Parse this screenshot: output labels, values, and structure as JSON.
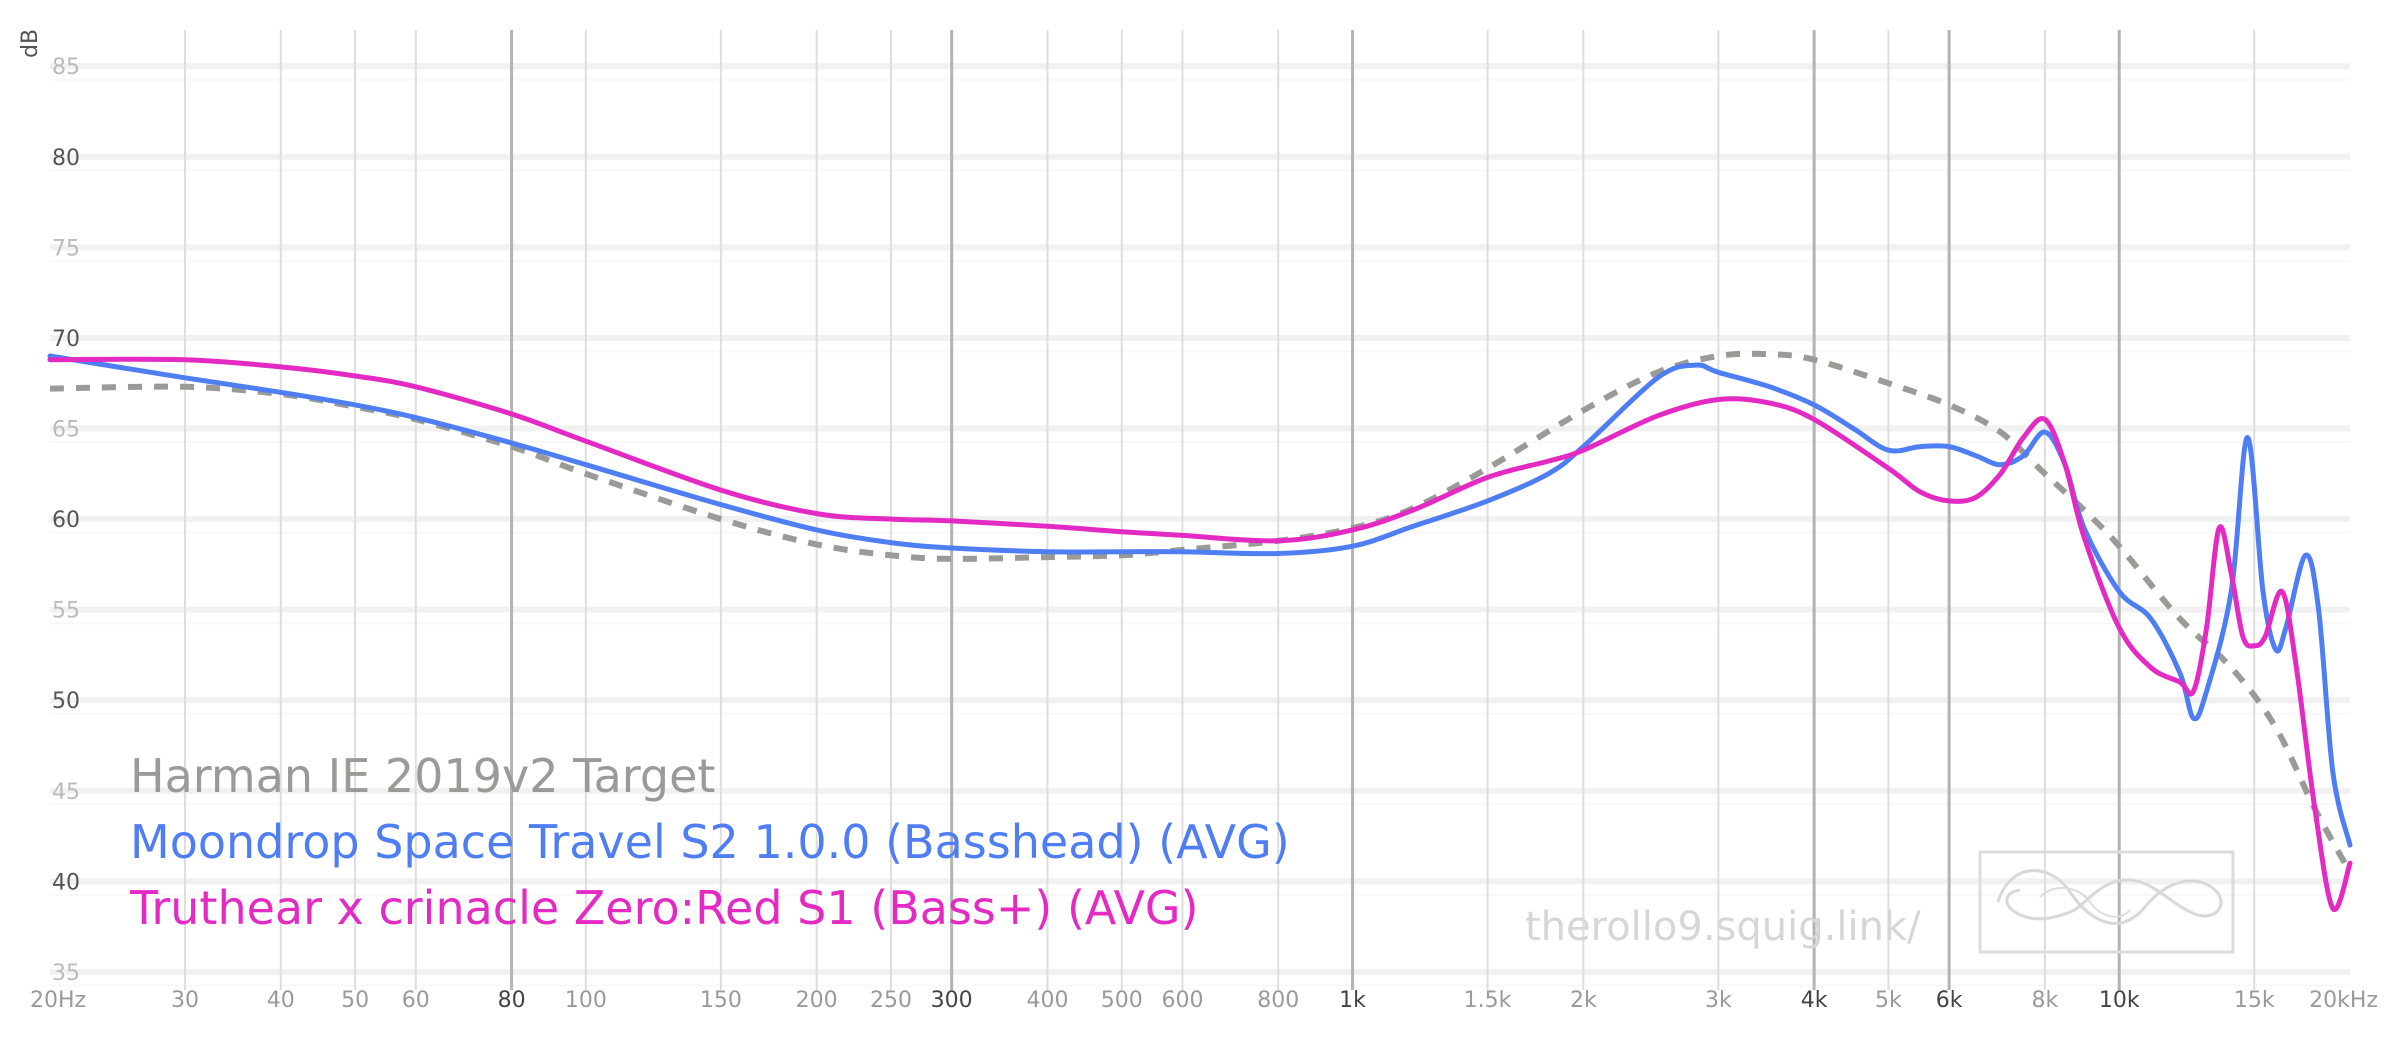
{
  "chart_data": {
    "type": "line",
    "ylabel": "dB",
    "xscale": "log",
    "xlim": [
      20,
      20000
    ],
    "ylim": [
      34,
      87
    ],
    "grid": true,
    "legend_placement": "bottom-left",
    "y_ticks": [
      {
        "value": 85,
        "label": "85"
      },
      {
        "value": 80,
        "label": "80"
      },
      {
        "value": 75,
        "label": "75"
      },
      {
        "value": 70,
        "label": "70"
      },
      {
        "value": 65,
        "label": "65"
      },
      {
        "value": 60,
        "label": "60"
      },
      {
        "value": 55,
        "label": "55"
      },
      {
        "value": 50,
        "label": "50"
      },
      {
        "value": 45,
        "label": "45"
      },
      {
        "value": 40,
        "label": "40"
      },
      {
        "value": 35,
        "label": "35"
      }
    ],
    "x_ticks": [
      {
        "value": 20,
        "label": "20Hz",
        "major": false
      },
      {
        "value": 30,
        "label": "30",
        "major": false
      },
      {
        "value": 40,
        "label": "40",
        "major": false
      },
      {
        "value": 50,
        "label": "50",
        "major": false
      },
      {
        "value": 60,
        "label": "60",
        "major": false
      },
      {
        "value": 80,
        "label": "80",
        "major": true
      },
      {
        "value": 100,
        "label": "100",
        "major": false
      },
      {
        "value": 150,
        "label": "150",
        "major": false
      },
      {
        "value": 200,
        "label": "200",
        "major": false
      },
      {
        "value": 250,
        "label": "250",
        "major": false
      },
      {
        "value": 300,
        "label": "300",
        "major": true
      },
      {
        "value": 400,
        "label": "400",
        "major": false
      },
      {
        "value": 500,
        "label": "500",
        "major": false
      },
      {
        "value": 600,
        "label": "600",
        "major": false
      },
      {
        "value": 800,
        "label": "800",
        "major": false
      },
      {
        "value": 1000,
        "label": "1k",
        "major": true
      },
      {
        "value": 1500,
        "label": "1.5k",
        "major": false
      },
      {
        "value": 2000,
        "label": "2k",
        "major": false
      },
      {
        "value": 3000,
        "label": "3k",
        "major": false
      },
      {
        "value": 4000,
        "label": "4k",
        "major": true
      },
      {
        "value": 5000,
        "label": "5k",
        "major": false
      },
      {
        "value": 6000,
        "label": "6k",
        "major": true
      },
      {
        "value": 8000,
        "label": "8k",
        "major": false
      },
      {
        "value": 10000,
        "label": "10k",
        "major": true
      },
      {
        "value": 15000,
        "label": "15k",
        "major": false
      },
      {
        "value": 20000,
        "label": "20kHz",
        "major": false
      }
    ],
    "series": [
      {
        "name": "Harman IE 2019v2 Target",
        "color": "#9a9a96",
        "dashed": true,
        "points": [
          [
            20,
            67.2
          ],
          [
            30,
            67.3
          ],
          [
            40,
            66.9
          ],
          [
            50,
            66.2
          ],
          [
            60,
            65.5
          ],
          [
            80,
            64.0
          ],
          [
            100,
            62.5
          ],
          [
            150,
            60.0
          ],
          [
            200,
            58.6
          ],
          [
            250,
            58.0
          ],
          [
            300,
            57.8
          ],
          [
            400,
            57.9
          ],
          [
            500,
            58.0
          ],
          [
            600,
            58.3
          ],
          [
            800,
            58.8
          ],
          [
            1000,
            59.5
          ],
          [
            1200,
            60.6
          ],
          [
            1500,
            62.8
          ],
          [
            2000,
            66.0
          ],
          [
            2500,
            68.1
          ],
          [
            3000,
            69.0
          ],
          [
            3500,
            69.1
          ],
          [
            4000,
            68.8
          ],
          [
            5000,
            67.5
          ],
          [
            6000,
            66.3
          ],
          [
            7000,
            64.8
          ],
          [
            8000,
            62.5
          ],
          [
            9000,
            60.5
          ],
          [
            10000,
            58.5
          ],
          [
            12000,
            54.5
          ],
          [
            14000,
            51.8
          ],
          [
            16000,
            48.5
          ],
          [
            18000,
            44.0
          ],
          [
            20000,
            40.5
          ]
        ]
      },
      {
        "name": "Moondrop Space Travel S2 1.0.0 (Basshead) (AVG)",
        "color": "#4f7ef3",
        "dashed": false,
        "points": [
          [
            20,
            69.0
          ],
          [
            30,
            67.8
          ],
          [
            40,
            67.0
          ],
          [
            50,
            66.3
          ],
          [
            60,
            65.6
          ],
          [
            80,
            64.2
          ],
          [
            100,
            63.0
          ],
          [
            150,
            60.8
          ],
          [
            200,
            59.4
          ],
          [
            250,
            58.7
          ],
          [
            300,
            58.4
          ],
          [
            400,
            58.2
          ],
          [
            500,
            58.2
          ],
          [
            600,
            58.2
          ],
          [
            800,
            58.1
          ],
          [
            1000,
            58.5
          ],
          [
            1200,
            59.6
          ],
          [
            1500,
            61.0
          ],
          [
            1800,
            62.5
          ],
          [
            2000,
            64.0
          ],
          [
            2500,
            67.8
          ],
          [
            2800,
            68.5
          ],
          [
            3000,
            68.1
          ],
          [
            3500,
            67.3
          ],
          [
            4000,
            66.3
          ],
          [
            4500,
            65.0
          ],
          [
            5000,
            63.8
          ],
          [
            5500,
            64.0
          ],
          [
            6000,
            64.0
          ],
          [
            6500,
            63.5
          ],
          [
            7000,
            63.0
          ],
          [
            7500,
            63.5
          ],
          [
            8000,
            64.8
          ],
          [
            8500,
            63.0
          ],
          [
            9000,
            59.5
          ],
          [
            10000,
            56.0
          ],
          [
            11000,
            54.5
          ],
          [
            12000,
            51.5
          ],
          [
            12500,
            49.0
          ],
          [
            13000,
            50.5
          ],
          [
            14000,
            56.0
          ],
          [
            14700,
            64.5
          ],
          [
            15400,
            56.0
          ],
          [
            16000,
            52.8
          ],
          [
            16500,
            54.0
          ],
          [
            17500,
            58.0
          ],
          [
            18200,
            55.0
          ],
          [
            19000,
            46.0
          ],
          [
            20000,
            42.0
          ]
        ]
      },
      {
        "name": "Truthear x crinacle Zero:Red S1 (Bass+) (AVG)",
        "color": "#e32bc4",
        "dashed": false,
        "points": [
          [
            20,
            68.8
          ],
          [
            30,
            68.8
          ],
          [
            40,
            68.4
          ],
          [
            50,
            67.9
          ],
          [
            60,
            67.3
          ],
          [
            80,
            65.8
          ],
          [
            100,
            64.3
          ],
          [
            150,
            61.6
          ],
          [
            200,
            60.3
          ],
          [
            250,
            60.0
          ],
          [
            300,
            59.9
          ],
          [
            400,
            59.6
          ],
          [
            500,
            59.3
          ],
          [
            600,
            59.1
          ],
          [
            800,
            58.8
          ],
          [
            1000,
            59.4
          ],
          [
            1200,
            60.5
          ],
          [
            1500,
            62.3
          ],
          [
            1800,
            63.2
          ],
          [
            2000,
            63.8
          ],
          [
            2500,
            65.7
          ],
          [
            3000,
            66.6
          ],
          [
            3500,
            66.4
          ],
          [
            4000,
            65.5
          ],
          [
            5000,
            62.8
          ],
          [
            5500,
            61.5
          ],
          [
            6000,
            61.0
          ],
          [
            6500,
            61.2
          ],
          [
            7000,
            62.5
          ],
          [
            7500,
            64.5
          ],
          [
            8000,
            65.5
          ],
          [
            8500,
            63.0
          ],
          [
            9000,
            59.0
          ],
          [
            10000,
            54.0
          ],
          [
            11000,
            51.8
          ],
          [
            12000,
            51.0
          ],
          [
            12500,
            50.5
          ],
          [
            13000,
            54.0
          ],
          [
            13500,
            59.5
          ],
          [
            14000,
            57.0
          ],
          [
            14500,
            53.5
          ],
          [
            15000,
            53.0
          ],
          [
            15500,
            53.5
          ],
          [
            16300,
            56.0
          ],
          [
            17000,
            52.0
          ],
          [
            18000,
            44.0
          ],
          [
            19000,
            38.5
          ],
          [
            20000,
            41.0
          ]
        ]
      }
    ]
  },
  "watermark": "therollo9.squig.link/",
  "logo_name": "squiglink-logo"
}
